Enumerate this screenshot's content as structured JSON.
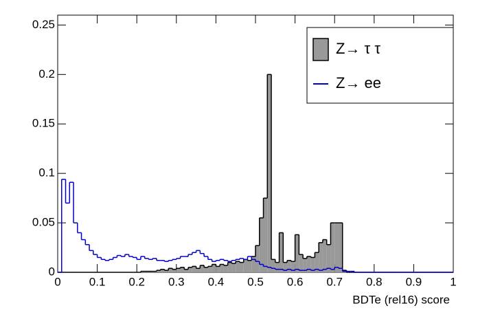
{
  "chart_data": {
    "type": "histogram",
    "x_label": "BDTe (rel16) score",
    "bins": [
      0,
      0.01,
      0.02,
      0.03,
      0.04,
      0.05,
      0.06,
      0.07,
      0.08,
      0.09,
      0.1,
      0.11,
      0.12,
      0.13,
      0.14,
      0.15,
      0.16,
      0.17,
      0.18,
      0.19,
      0.2,
      0.21,
      0.22,
      0.23,
      0.24,
      0.25,
      0.26,
      0.27,
      0.28,
      0.29,
      0.3,
      0.31,
      0.32,
      0.33,
      0.34,
      0.35,
      0.36,
      0.37,
      0.38,
      0.39,
      0.4,
      0.41,
      0.42,
      0.43,
      0.44,
      0.45,
      0.46,
      0.47,
      0.48,
      0.49,
      0.5,
      0.51,
      0.52,
      0.53,
      0.54,
      0.55,
      0.56,
      0.57,
      0.58,
      0.59,
      0.6,
      0.61,
      0.62,
      0.63,
      0.64,
      0.65,
      0.66,
      0.67,
      0.68,
      0.69,
      0.7,
      0.71,
      0.72,
      0.73,
      0.74,
      0.75,
      0.76,
      0.77,
      0.78,
      0.79,
      0.8,
      0.81,
      0.82,
      0.83,
      0.84,
      0.85,
      0.86,
      0.87,
      0.88,
      0.89,
      0.9,
      0.91,
      0.92,
      0.93,
      0.94,
      0.95,
      0.96,
      0.97,
      0.98,
      0.99,
      1
    ],
    "series": [
      {
        "name": "Z→ τ τ",
        "color": "#999999",
        "edge_color": "#000000",
        "filled": true,
        "values": [
          0,
          0,
          0,
          0,
          0,
          0,
          0,
          0,
          0,
          0,
          0,
          0,
          0,
          0,
          0,
          0,
          0,
          0,
          0,
          0,
          0,
          0.001,
          0.001,
          0.001,
          0.001,
          0.002,
          0.003,
          0.002,
          0.004,
          0.003,
          0.004,
          0.005,
          0.003,
          0.005,
          0.006,
          0.004,
          0.007,
          0.005,
          0.006,
          0.008,
          0.006,
          0.008,
          0.007,
          0.01,
          0.009,
          0.011,
          0.01,
          0.013,
          0.012,
          0.016,
          0.027,
          0.055,
          0.075,
          0.2,
          0.013,
          0.01,
          0.04,
          0.01,
          0.012,
          0.011,
          0.038,
          0.018,
          0.014,
          0.016,
          0.015,
          0.02,
          0.03,
          0.033,
          0.028,
          0.05,
          0.05,
          0.05,
          0.002,
          0,
          0,
          0,
          0,
          0,
          0,
          0,
          0,
          0,
          0,
          0,
          0,
          0,
          0,
          0,
          0,
          0,
          0,
          0,
          0,
          0,
          0,
          0,
          0,
          0,
          0,
          0
        ]
      },
      {
        "name": "Z→ ee",
        "color": "#0000cc",
        "edge_color": "#0000cc",
        "filled": false,
        "values": [
          0,
          0.094,
          0.07,
          0.091,
          0.05,
          0.04,
          0.033,
          0.028,
          0.022,
          0.018,
          0.015,
          0.013,
          0.012,
          0.013,
          0.015,
          0.017,
          0.016,
          0.018,
          0.016,
          0.015,
          0.013,
          0.016,
          0.014,
          0.013,
          0.014,
          0.012,
          0.012,
          0.011,
          0.012,
          0.013,
          0.014,
          0.016,
          0.016,
          0.018,
          0.02,
          0.022,
          0.019,
          0.016,
          0.013,
          0.011,
          0.012,
          0.013,
          0.012,
          0.011,
          0.012,
          0.013,
          0.014,
          0.013,
          0.016,
          0.013,
          0.011,
          0.008,
          0.006,
          0.005,
          0.004,
          0.003,
          0.003,
          0.002,
          0.003,
          0.002,
          0.003,
          0.002,
          0.002,
          0.003,
          0.002,
          0.003,
          0.002,
          0.003,
          0.004,
          0.003,
          0.005,
          0.004,
          0.001,
          0.001,
          0.001,
          0,
          0,
          0,
          0,
          0,
          0,
          0,
          0,
          0,
          0,
          0,
          0,
          0,
          0,
          0,
          0,
          0,
          0,
          0,
          0,
          0,
          0,
          0,
          0,
          0
        ]
      }
    ],
    "xlim": [
      0,
      1
    ],
    "xticks": [
      0,
      0.1,
      0.2,
      0.3,
      0.4,
      0.5,
      0.6,
      0.7,
      0.8,
      0.9,
      1
    ],
    "ylim": [
      0,
      0.26
    ],
    "yticks": [
      0,
      0.05,
      0.1,
      0.15,
      0.2,
      0.25
    ],
    "legend": "upper right"
  }
}
